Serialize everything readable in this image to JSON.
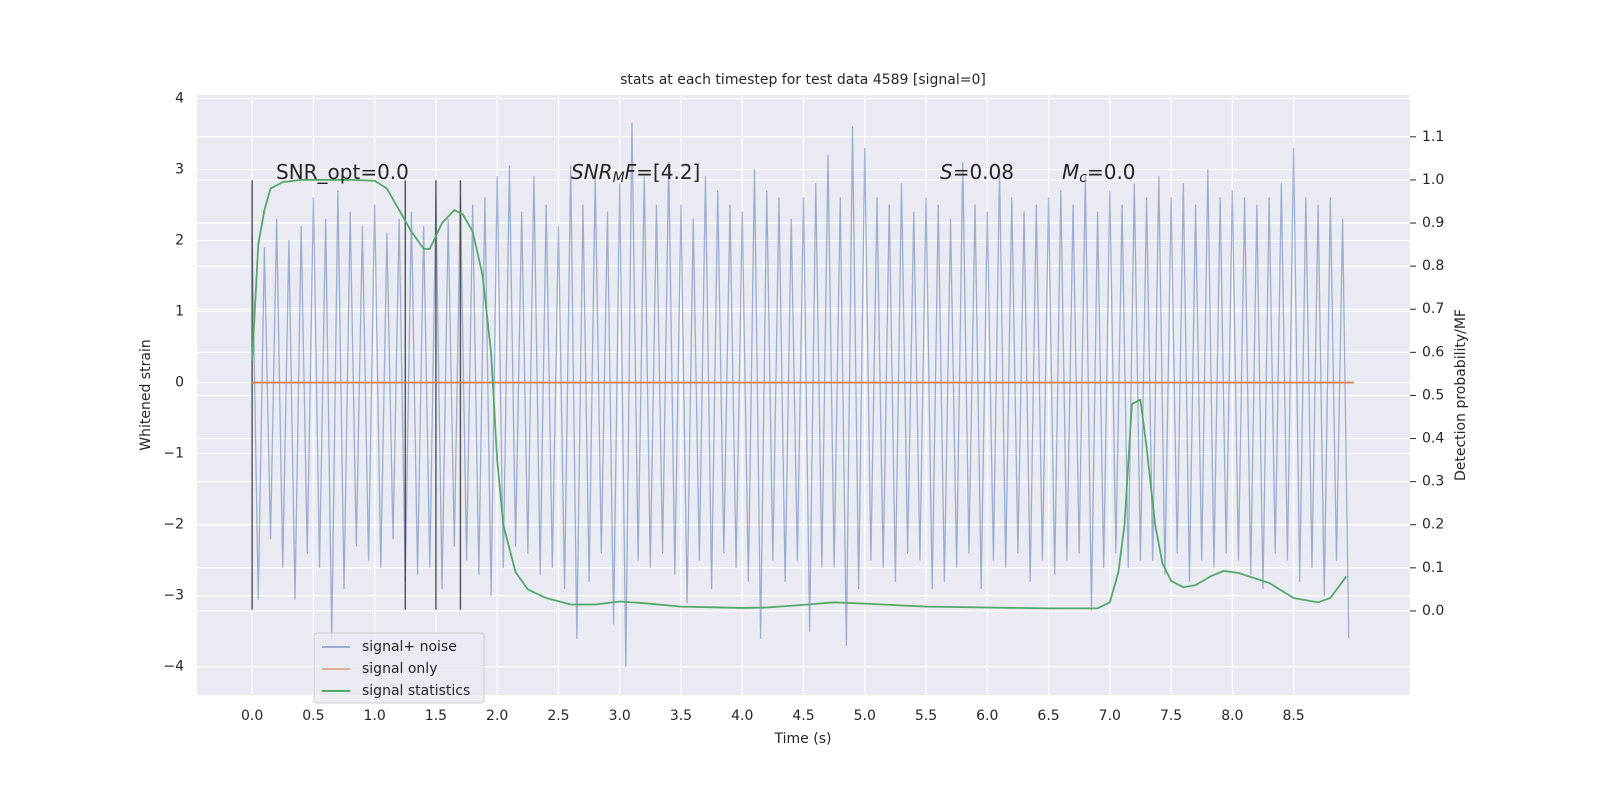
{
  "chart_data": {
    "type": "line",
    "title": "stats at each timestep for test data 4589 [signal=0]",
    "xlabel": "Time (s)",
    "ylabel": "Whitened strain",
    "y2label": "Detection probability/MF",
    "xlim": [
      -0.45,
      9.45
    ],
    "ylim": [
      -4.4,
      4.05
    ],
    "y2lim": [
      -0.195,
      1.197
    ],
    "xticks": [
      {
        "value": 0,
        "label": "0.0"
      },
      0.5,
      {
        "value": 1,
        "label": "1.0"
      },
      1.5,
      {
        "value": 2,
        "label": "2.0"
      },
      2.5,
      {
        "value": 3,
        "label": "3.0"
      },
      3.5,
      {
        "value": 4,
        "label": "4.0"
      },
      4.5,
      {
        "value": 5,
        "label": "5.0"
      },
      5.5,
      {
        "value": 6,
        "label": "6.0"
      },
      6.5,
      {
        "value": 7,
        "label": "7.0"
      },
      7.5,
      {
        "value": 8,
        "label": "8.0"
      },
      8.5
    ],
    "yticks": [
      {
        "value": -4,
        "label": "−4"
      },
      {
        "value": -3,
        "label": "−3"
      },
      {
        "value": -2,
        "label": "−2"
      },
      {
        "value": -1,
        "label": "−1"
      },
      0,
      1,
      2,
      3,
      4
    ],
    "y2ticks": [
      {
        "value": 0,
        "label": "0.0"
      },
      0.1,
      0.2,
      0.3,
      0.4,
      0.5,
      0.6,
      0.7,
      0.8,
      0.9,
      {
        "value": 1,
        "label": "1.0"
      },
      1.1
    ],
    "grid": true,
    "legend": "lower left",
    "series": [
      {
        "name": "signal+ noise",
        "color": "#4c72b0",
        "x": [
          0,
          0.05,
          0.1,
          0.15,
          0.2,
          0.25,
          0.3,
          0.35,
          0.4,
          0.45,
          0.5,
          0.55,
          0.6,
          0.65,
          0.7,
          0.75,
          0.8,
          0.85,
          0.9,
          0.95,
          1,
          1.05,
          1.1,
          1.15,
          1.2,
          1.25,
          1.3,
          1.35,
          1.4,
          1.45,
          1.5,
          1.55,
          1.6,
          1.65,
          1.7,
          1.75,
          1.8,
          1.85,
          1.9,
          1.95,
          2,
          2.05,
          2.1,
          2.15,
          2.2,
          2.25,
          2.3,
          2.35,
          2.4,
          2.45,
          2.5,
          2.55,
          2.6,
          2.65,
          2.7,
          2.75,
          2.8,
          2.85,
          2.9,
          2.95,
          3,
          3.05,
          3.1,
          3.15,
          3.2,
          3.25,
          3.3,
          3.35,
          3.4,
          3.45,
          3.5,
          3.55,
          3.6,
          3.65,
          3.7,
          3.75,
          3.8,
          3.85,
          3.9,
          3.95,
          4,
          4.05,
          4.1,
          4.15,
          4.2,
          4.25,
          4.3,
          4.35,
          4.4,
          4.45,
          4.5,
          4.55,
          4.6,
          4.65,
          4.7,
          4.75,
          4.8,
          4.85,
          4.9,
          4.95,
          5,
          5.05,
          5.1,
          5.15,
          5.2,
          5.25,
          5.3,
          5.35,
          5.4,
          5.45,
          5.5,
          5.55,
          5.6,
          5.65,
          5.7,
          5.75,
          5.8,
          5.85,
          5.9,
          5.95,
          6,
          6.05,
          6.1,
          6.15,
          6.2,
          6.25,
          6.3,
          6.35,
          6.4,
          6.45,
          6.5,
          6.55,
          6.6,
          6.65,
          6.7,
          6.75,
          6.8,
          6.85,
          6.9,
          6.95,
          7,
          7.05,
          7.1,
          7.15,
          7.2,
          7.25,
          7.3,
          7.35,
          7.4,
          7.45,
          7.5,
          7.55,
          7.6,
          7.65,
          7.7,
          7.75,
          7.8,
          7.85,
          7.9,
          7.95,
          8,
          8.05,
          8.1,
          8.15,
          8.2,
          8.25,
          8.3,
          8.35,
          8.4,
          8.45,
          8.5,
          8.55,
          8.6,
          8.65,
          8.7,
          8.75,
          8.8,
          8.85,
          8.9,
          8.95
        ],
        "values": [
          2.1,
          -3.05,
          1.9,
          -2.2,
          2.3,
          -2.6,
          2.0,
          -3.05,
          2.2,
          -2.4,
          2.6,
          -2.6,
          2.3,
          -3.6,
          2.7,
          -2.9,
          2.4,
          -2.3,
          2.2,
          -2.5,
          2.5,
          -2.6,
          2.1,
          -2.2,
          2.3,
          -2.8,
          2.4,
          -2.7,
          2.2,
          -2.6,
          2.6,
          -2.9,
          2.3,
          -2.3,
          2.6,
          -2.5,
          2.5,
          -2.7,
          2.6,
          -3.0,
          2.9,
          -2.6,
          3.05,
          -2.3,
          2.4,
          -2.4,
          2.9,
          -2.7,
          2.5,
          -2.6,
          2.2,
          -2.9,
          3.05,
          -3.6,
          2.5,
          -2.8,
          2.9,
          -2.4,
          2.4,
          -3.4,
          2.8,
          -4.0,
          3.65,
          -2.5,
          2.9,
          -2.6,
          2.5,
          -2.4,
          3.1,
          -2.7,
          2.5,
          -3.1,
          2.3,
          -2.5,
          2.9,
          -2.9,
          2.7,
          -2.4,
          2.5,
          -2.6,
          2.4,
          -2.8,
          3.0,
          -3.6,
          2.7,
          -2.5,
          2.6,
          -2.8,
          2.3,
          -2.5,
          2.6,
          -3.5,
          2.8,
          -2.6,
          3.2,
          -2.6,
          2.6,
          -3.7,
          3.6,
          -2.9,
          3.3,
          -2.5,
          2.6,
          -2.6,
          2.5,
          -2.8,
          2.8,
          -2.4,
          2.4,
          -2.5,
          2.6,
          -2.9,
          2.5,
          -2.8,
          2.3,
          -2.6,
          3.1,
          -2.4,
          2.5,
          -2.9,
          2.4,
          -2.5,
          3.0,
          -2.6,
          2.6,
          -2.4,
          2.4,
          -2.8,
          2.5,
          -2.5,
          2.6,
          -2.7,
          2.7,
          -2.5,
          2.5,
          -2.4,
          2.9,
          -3.2,
          2.4,
          -2.6,
          2.7,
          -2.4,
          2.5,
          -2.6,
          2.8,
          -2.5,
          2.6,
          -2.5,
          2.9,
          -2.7,
          2.6,
          -2.4,
          2.8,
          -2.8,
          2.5,
          -2.5,
          3.0,
          -2.6,
          2.6,
          -2.4,
          2.7,
          -2.5,
          2.6,
          -2.7,
          2.5,
          -2.9,
          2.6,
          -2.4,
          2.8,
          -2.5,
          3.3,
          -2.8,
          2.6,
          -2.6,
          2.5,
          -3.0,
          2.6,
          -2.5,
          2.3,
          -3.6
        ]
      },
      {
        "name": "signal only",
        "color": "#dd8452",
        "x": [
          0,
          8.99
        ],
        "values": [
          0,
          0
        ]
      },
      {
        "name": "signal statistics",
        "color": "#55a868",
        "axis": "y2",
        "x": [
          0,
          0.05,
          0.1,
          0.15,
          0.25,
          0.4,
          0.6,
          0.8,
          1.0,
          1.1,
          1.2,
          1.3,
          1.4,
          1.45,
          1.55,
          1.65,
          1.72,
          1.8,
          1.88,
          1.95,
          2.0,
          2.05,
          2.15,
          2.25,
          2.4,
          2.6,
          2.8,
          3.0,
          3.2,
          3.5,
          4.0,
          4.2,
          4.5,
          4.75,
          5.0,
          5.5,
          6.0,
          6.5,
          6.9,
          7.0,
          7.07,
          7.12,
          7.18,
          7.25,
          7.3,
          7.37,
          7.43,
          7.5,
          7.6,
          7.7,
          7.82,
          7.93,
          8.05,
          8.3,
          8.5,
          8.7,
          8.8,
          8.93
        ],
        "values": [
          0.58,
          0.85,
          0.93,
          0.98,
          0.995,
          1.0,
          1.0,
          1.0,
          0.998,
          0.98,
          0.93,
          0.88,
          0.84,
          0.84,
          0.9,
          0.93,
          0.92,
          0.88,
          0.78,
          0.6,
          0.35,
          0.2,
          0.09,
          0.05,
          0.03,
          0.015,
          0.015,
          0.022,
          0.018,
          0.01,
          0.007,
          0.008,
          0.014,
          0.02,
          0.017,
          0.01,
          0.008,
          0.006,
          0.006,
          0.02,
          0.09,
          0.2,
          0.48,
          0.49,
          0.38,
          0.2,
          0.11,
          0.07,
          0.055,
          0.06,
          0.08,
          0.093,
          0.088,
          0.065,
          0.03,
          0.02,
          0.03,
          0.08
        ]
      }
    ],
    "vlines": {
      "x": [
        0,
        1.25,
        1.5,
        1.7
      ],
      "ymin": -3.2,
      "ymax": 2.85,
      "color": "#333333"
    },
    "annotations": [
      {
        "parts": [
          {
            "text": "SNR_opt=0.0"
          }
        ]
      },
      {
        "parts": [
          {
            "text": "SNR",
            "style": "italic"
          },
          {
            "text": "M",
            "style": "sub"
          },
          {
            "text": "F",
            "style": "italic"
          },
          {
            "text": "=[4.2]"
          }
        ]
      },
      {
        "parts": [
          {
            "text": "S",
            "style": "italic"
          },
          {
            "text": "=0.08"
          }
        ]
      },
      {
        "parts": [
          {
            "text": "M",
            "style": "italic"
          },
          {
            "text": "c",
            "style": "sub"
          },
          {
            "text": "=0.0"
          }
        ]
      }
    ]
  }
}
